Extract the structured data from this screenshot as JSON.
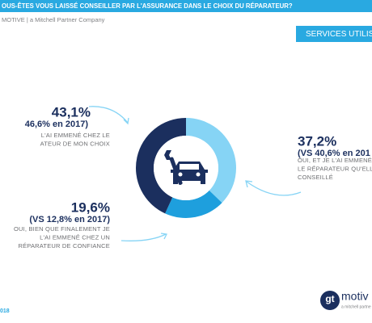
{
  "header": {
    "title": "OUS-ÊTES VOUS LAISSÉ CONSEILLER PAR L'ASSURANCE DANS LE CHOIX DU RÉPARATEUR?",
    "company": "MOTIVE | a Mitchell Partner Company",
    "section": "SERVICES UTILISE"
  },
  "footer": {
    "year": "018",
    "logo_mark": "gt",
    "logo_text": "motiv",
    "logo_sub": "a mitchell partne"
  },
  "chart_data": {
    "type": "donut",
    "categories": [
      [
        "OUI, ET JE L'AI EMMENÉ C",
        "LE RÉPARATEUR QU'ELLE",
        "CONSEILLÉ"
      ],
      [
        "OUI, BIEN QUE FINALEMENT JE",
        "L'AI EMMENÉ CHEZ UN",
        "RÉPARATEUR DE CONFIANCE"
      ],
      [
        "L'AI EMMENÉ CHEZ LE",
        "ATEUR DE MON CHOIX"
      ]
    ],
    "values": [
      37.2,
      19.6,
      43.1
    ],
    "value_labels": [
      "37,2%",
      "19,6%",
      "43,1%"
    ],
    "comparisons": [
      "(VS 40,6% en 201",
      "(VS 12,8% en 2017)",
      "46,6% en 2017)"
    ],
    "colors": [
      "#86d4f5",
      "#1e9fdd",
      "#1b2f5e"
    ]
  }
}
